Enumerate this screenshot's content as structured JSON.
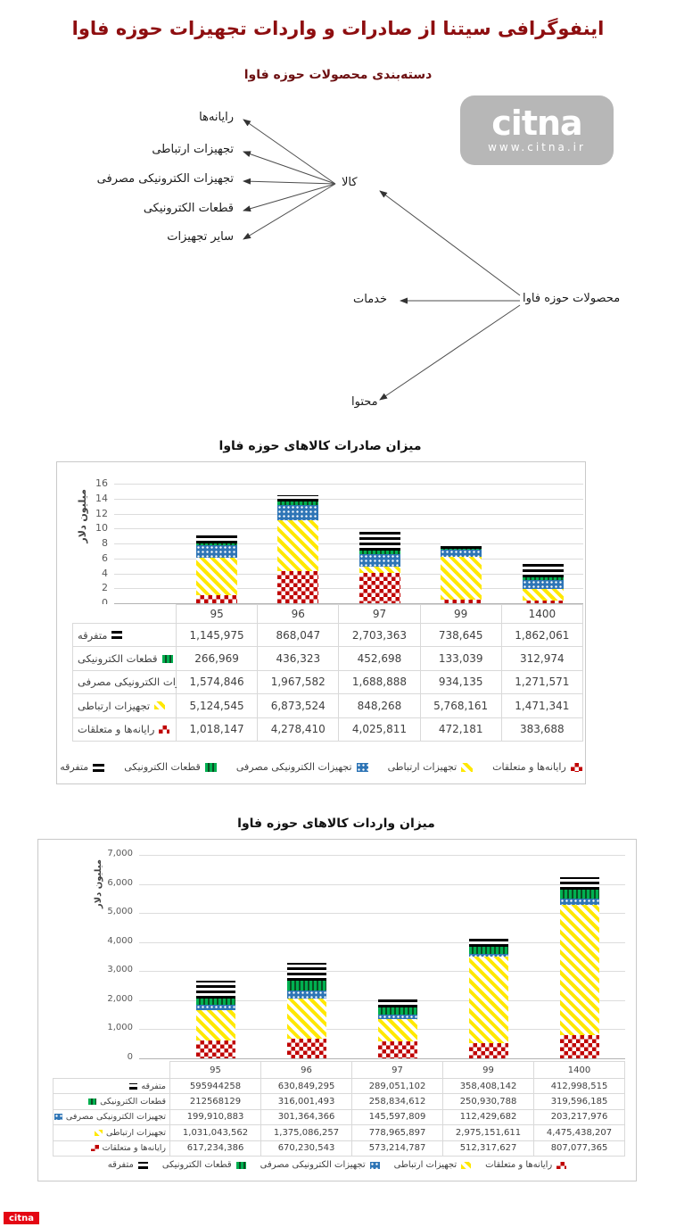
{
  "page": {
    "title": "اینفوگرافی سیتنا از صادرات و واردات تجهیزات حوزه فاوا"
  },
  "watermark": {
    "brand": "citna",
    "url": "www.citna.ir"
  },
  "footer": {
    "brand": "citna"
  },
  "diagram": {
    "subtitle": "دسته‌بندی محصولات حوزه فاوا",
    "root": "محصولات حوزه فاوا",
    "goods": "کالا",
    "services": "خدمات",
    "content": "محتوا",
    "goods_children": [
      "رایانه‌ها",
      "تجهیزات ارتباطی",
      "تجهیزات الکترونیکی مصرفی",
      "قطعات الکترونیکی",
      "سایر تجهیزات"
    ]
  },
  "export_chart": {
    "title": "میزان صادرات کالاهای حوزه فاوا",
    "ylabel": "میلیون دلار",
    "yticks": [
      "0",
      "2",
      "4",
      "6",
      "8",
      "10",
      "12",
      "14",
      "16"
    ],
    "ymax_units": 16,
    "categories": [
      "95",
      "96",
      "97",
      "99",
      "1400"
    ],
    "rows": [
      {
        "label": "متفرقه",
        "pattern": "black",
        "values": [
          "1,145,975",
          "868,047",
          "2,703,363",
          "738,645",
          "1,862,061"
        ]
      },
      {
        "label": "قطعات الکترونیکی",
        "pattern": "green",
        "values": [
          "266,969",
          "436,323",
          "452,698",
          "133,039",
          "312,974"
        ]
      },
      {
        "label": "تجهیزات الکترونیکی مصرفی",
        "pattern": "blue",
        "values": [
          "1,574,846",
          "1,967,582",
          "1,688,888",
          "934,135",
          "1,271,571"
        ]
      },
      {
        "label": "تجهیزات ارتباطی",
        "pattern": "yellow",
        "values": [
          "5,124,545",
          "6,873,524",
          "848,268",
          "5,768,161",
          "1,471,341"
        ]
      },
      {
        "label": "رایانه‌ها و متعلقات",
        "pattern": "red",
        "values": [
          "1,018,147",
          "4,278,410",
          "4,025,811",
          "472,181",
          "383,688"
        ]
      }
    ]
  },
  "import_chart": {
    "title": "میزان واردات کالاهای حوزه فاوا",
    "ylabel": "میلیون دلار",
    "yticks": [
      "0",
      "1,000",
      "2,000",
      "3,000",
      "4,000",
      "5,000",
      "6,000",
      "7,000"
    ],
    "ymax_units": 7000,
    "categories": [
      "95",
      "96",
      "97",
      "99",
      "1400"
    ],
    "rows": [
      {
        "label": "متفرقه",
        "pattern": "black",
        "values": [
          "595944258",
          "630,849,295",
          "289,051,102",
          "358,408,142",
          "412,998,515"
        ]
      },
      {
        "label": "قطعات الکترونیکی",
        "pattern": "green",
        "values": [
          "212568129",
          "316,001,493",
          "258,834,612",
          "250,930,788",
          "319,596,185"
        ]
      },
      {
        "label": "تجهیزات الکترونیکی مصرفی",
        "pattern": "blue",
        "values": [
          "199,910,883",
          "301,364,366",
          "145,597,809",
          "112,429,682",
          "203,217,976"
        ]
      },
      {
        "label": "تجهیزات ارتباطی",
        "pattern": "yellow",
        "values": [
          "1,031,043,562",
          "1,375,086,257",
          "778,965,897",
          "2,975,151,611",
          "4,475,438,207"
        ]
      },
      {
        "label": "رایانه‌ها و متعلقات",
        "pattern": "red",
        "values": [
          "617,234,386",
          "670,230,543",
          "573,214,787",
          "512,317,627",
          "807,077,365"
        ]
      }
    ]
  },
  "colors": {
    "red": "#C00000",
    "yellow": "#FFE800",
    "blue": "#2E75B6",
    "green": "#00B050",
    "black": "#000000",
    "title": "#8E0E10"
  },
  "chart_data": [
    {
      "type": "bar",
      "stacked": true,
      "title": "میزان صادرات کالاهای حوزه فاوا",
      "xlabel": "",
      "ylabel": "میلیون دلار",
      "ylim": [
        0,
        16
      ],
      "legend_position": "bottom",
      "grid": true,
      "categories": [
        "95",
        "96",
        "97",
        "99",
        "1400"
      ],
      "series": [
        {
          "name": "رایانه‌ها و متعلقات",
          "values": [
            1018147,
            4278410,
            4025811,
            472181,
            383688
          ]
        },
        {
          "name": "تجهیزات ارتباطی",
          "values": [
            5124545,
            6873524,
            848268,
            5768161,
            1471341
          ]
        },
        {
          "name": "تجهیزات الکترونیکی مصرفی",
          "values": [
            1574846,
            1967582,
            1688888,
            934135,
            1271571
          ]
        },
        {
          "name": "قطعات الکترونیکی",
          "values": [
            266969,
            436323,
            452698,
            133039,
            312974
          ]
        },
        {
          "name": "متفرقه",
          "values": [
            1145975,
            868047,
            2703363,
            738645,
            1862061
          ]
        }
      ]
    },
    {
      "type": "bar",
      "stacked": true,
      "title": "میزان واردات کالاهای حوزه فاوا",
      "xlabel": "",
      "ylabel": "میلیون دلار",
      "ylim": [
        0,
        7000
      ],
      "legend_position": "bottom",
      "grid": true,
      "categories": [
        "95",
        "96",
        "97",
        "99",
        "1400"
      ],
      "series": [
        {
          "name": "رایانه‌ها و متعلقات",
          "values": [
            617234386,
            670230543,
            573214787,
            512317627,
            807077365
          ]
        },
        {
          "name": "تجهیزات ارتباطی",
          "values": [
            1031043562,
            1375086257,
            778965897,
            2975151611,
            4475438207
          ]
        },
        {
          "name": "تجهیزات الکترونیکی مصرفی",
          "values": [
            199910883,
            301364366,
            145597809,
            112429682,
            203217976
          ]
        },
        {
          "name": "قطعات الکترونیکی",
          "values": [
            212568129,
            316001493,
            258834612,
            250930788,
            319596185
          ]
        },
        {
          "name": "متفرقه",
          "values": [
            595944258,
            630849295,
            289051102,
            358408142,
            412998515
          ]
        }
      ]
    }
  ]
}
